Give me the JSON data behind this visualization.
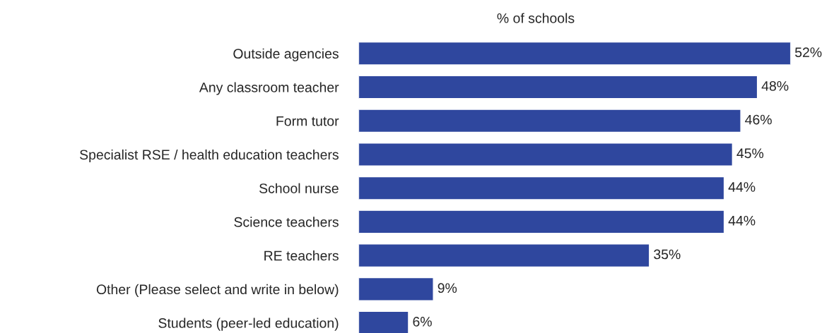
{
  "chart_data": {
    "type": "bar",
    "orientation": "horizontal",
    "title": "% of schools",
    "categories": [
      "Outside agencies",
      "Any classroom teacher",
      "Form tutor",
      "Specialist RSE / health education teachers",
      "School nurse",
      "Science teachers",
      "RE teachers",
      "Other (Please select and write in below)",
      "Students (peer-led education)"
    ],
    "values": [
      52,
      48,
      46,
      45,
      44,
      44,
      35,
      9,
      6
    ],
    "value_labels": [
      "52%",
      "48%",
      "46%",
      "45%",
      "44%",
      "44%",
      "35%",
      "9%",
      "6%"
    ],
    "color": "#2f479e",
    "xlim": [
      0,
      52
    ],
    "grid": false,
    "legend": false
  }
}
